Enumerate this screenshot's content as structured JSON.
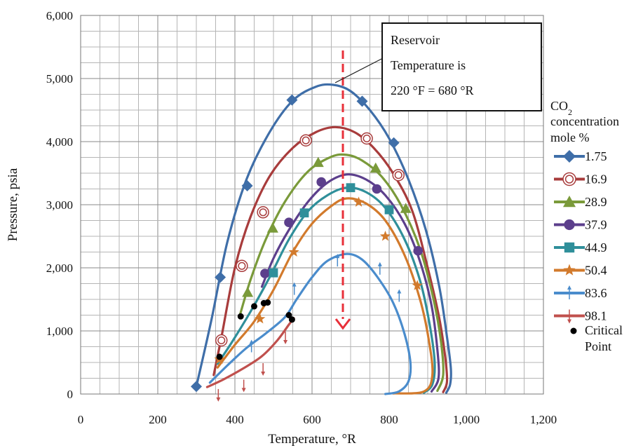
{
  "chart_data": {
    "type": "line",
    "xlabel": "Temperature, °R",
    "ylabel": "Pressure, psia",
    "xlim": [
      0,
      1200
    ],
    "ylim": [
      0,
      6000
    ],
    "x_ticks": [
      "0",
      "200",
      "400",
      "600",
      "800",
      "1,000",
      "1,200"
    ],
    "y_ticks": [
      "0",
      "1,000",
      "2,000",
      "3,000",
      "4,000",
      "5,000",
      "6,000"
    ],
    "grid": true,
    "legend": {
      "title_line1": "CO",
      "title_sub": "2",
      "title_line2": "concentration",
      "title_line3": "mole %",
      "placement": "right"
    },
    "annotation": {
      "lines": [
        "Reservoir",
        "Temperature is",
        "220 °F = 680 °R"
      ],
      "reservoir_temperature": 680
    },
    "series": [
      {
        "name": "1.75",
        "color": "#3f6ea8",
        "marker": "diamond",
        "curve": [
          [
            300,
            120
          ],
          [
            340,
            1200
          ],
          [
            380,
            2400
          ],
          [
            430,
            3400
          ],
          [
            490,
            4150
          ],
          [
            550,
            4650
          ],
          [
            610,
            4870
          ],
          [
            655,
            4900
          ],
          [
            700,
            4800
          ],
          [
            750,
            4500
          ],
          [
            800,
            4050
          ],
          [
            850,
            3400
          ],
          [
            895,
            2600
          ],
          [
            930,
            1700
          ],
          [
            950,
            900
          ],
          [
            960,
            400
          ],
          [
            958,
            150
          ],
          [
            948,
            20
          ]
        ],
        "markers": [
          [
            300,
            120
          ],
          [
            362,
            1850
          ],
          [
            432,
            3300
          ],
          [
            548,
            4660
          ],
          [
            730,
            4640
          ],
          [
            812,
            3980
          ]
        ]
      },
      {
        "name": "16.9",
        "color": "#a83c3c",
        "marker": "circle-open",
        "curve": [
          [
            345,
            300
          ],
          [
            365,
            900
          ],
          [
            400,
            2000
          ],
          [
            440,
            2800
          ],
          [
            490,
            3450
          ],
          [
            550,
            3900
          ],
          [
            610,
            4150
          ],
          [
            660,
            4230
          ],
          [
            710,
            4150
          ],
          [
            760,
            3900
          ],
          [
            810,
            3500
          ],
          [
            860,
            2900
          ],
          [
            900,
            2000
          ],
          [
            930,
            1200
          ],
          [
            945,
            600
          ],
          [
            950,
            200
          ],
          [
            940,
            30
          ]
        ],
        "markers": [
          [
            365,
            850
          ],
          [
            418,
            2030
          ],
          [
            473,
            2880
          ],
          [
            584,
            4020
          ],
          [
            742,
            4050
          ],
          [
            824,
            3470
          ]
        ]
      },
      {
        "name": "28.9",
        "color": "#7a9a3a",
        "marker": "triangle",
        "curve": [
          [
            413,
            1250
          ],
          [
            440,
            1800
          ],
          [
            480,
            2450
          ],
          [
            530,
            3050
          ],
          [
            590,
            3530
          ],
          [
            650,
            3760
          ],
          [
            690,
            3790
          ],
          [
            730,
            3700
          ],
          [
            780,
            3450
          ],
          [
            830,
            3000
          ],
          [
            880,
            2300
          ],
          [
            915,
            1500
          ],
          [
            935,
            800
          ],
          [
            940,
            300
          ],
          [
            925,
            50
          ]
        ],
        "markers": [
          [
            433,
            1610
          ],
          [
            498,
            2630
          ],
          [
            616,
            3670
          ],
          [
            765,
            3580
          ],
          [
            843,
            2940
          ]
        ]
      },
      {
        "name": "37.9",
        "color": "#5c3f8c",
        "marker": "circle",
        "curve": [
          [
            470,
            1700
          ],
          [
            500,
            2150
          ],
          [
            540,
            2600
          ],
          [
            590,
            3050
          ],
          [
            640,
            3350
          ],
          [
            690,
            3480
          ],
          [
            740,
            3400
          ],
          [
            790,
            3150
          ],
          [
            840,
            2700
          ],
          [
            880,
            2100
          ],
          [
            910,
            1400
          ],
          [
            925,
            700
          ],
          [
            928,
            250
          ],
          [
            910,
            40
          ]
        ],
        "markers": [
          [
            478,
            1910
          ],
          [
            540,
            2720
          ],
          [
            624,
            3360
          ],
          [
            768,
            3250
          ],
          [
            875,
            2270
          ]
        ]
      },
      {
        "name": "44.9",
        "color": "#2f8f9a",
        "marker": "square",
        "curve": [
          [
            355,
            480
          ],
          [
            390,
            800
          ],
          [
            440,
            1300
          ],
          [
            490,
            1850
          ],
          [
            540,
            2450
          ],
          [
            590,
            2900
          ],
          [
            640,
            3150
          ],
          [
            690,
            3270
          ],
          [
            740,
            3200
          ],
          [
            790,
            2950
          ],
          [
            840,
            2450
          ],
          [
            880,
            1800
          ],
          [
            905,
            1100
          ],
          [
            918,
            500
          ],
          [
            912,
            150
          ],
          [
            890,
            20
          ]
        ],
        "markers": [
          [
            500,
            1920
          ],
          [
            580,
            2870
          ],
          [
            700,
            3270
          ],
          [
            800,
            2920
          ]
        ]
      },
      {
        "name": "50.4",
        "color": "#d27a2c",
        "marker": "star",
        "curve": [
          [
            355,
            420
          ],
          [
            400,
            780
          ],
          [
            450,
            1150
          ],
          [
            500,
            1650
          ],
          [
            550,
            2250
          ],
          [
            600,
            2700
          ],
          [
            650,
            2980
          ],
          [
            690,
            3100
          ],
          [
            740,
            3020
          ],
          [
            790,
            2750
          ],
          [
            840,
            2200
          ],
          [
            880,
            1500
          ],
          [
            903,
            850
          ],
          [
            912,
            300
          ],
          [
            890,
            40
          ],
          [
            810,
            10
          ]
        ],
        "markers": [
          [
            360,
            550
          ],
          [
            465,
            1190
          ],
          [
            553,
            2250
          ],
          [
            721,
            3040
          ],
          [
            790,
            2500
          ],
          [
            873,
            1720
          ]
        ]
      },
      {
        "name": "83.6",
        "color": "#4a8ccc",
        "marker": "arrow-up",
        "curve": [
          [
            335,
            180
          ],
          [
            380,
            450
          ],
          [
            430,
            730
          ],
          [
            480,
            960
          ],
          [
            530,
            1220
          ],
          [
            560,
            1500
          ],
          [
            600,
            1850
          ],
          [
            640,
            2110
          ],
          [
            690,
            2220
          ],
          [
            730,
            2130
          ],
          [
            770,
            1850
          ],
          [
            810,
            1450
          ],
          [
            840,
            950
          ],
          [
            855,
            500
          ],
          [
            850,
            200
          ],
          [
            825,
            40
          ],
          [
            790,
            0
          ]
        ],
        "markers": [
          [
            443,
            750
          ],
          [
            554,
            1660
          ],
          [
            666,
            2110
          ],
          [
            776,
            1980
          ],
          [
            826,
            1550
          ]
        ]
      },
      {
        "name": "98.1",
        "color": "#c0504d",
        "marker": "arrow-down",
        "curve": [
          [
            328,
            110
          ],
          [
            370,
            230
          ],
          [
            420,
            400
          ],
          [
            470,
            600
          ],
          [
            510,
            850
          ],
          [
            540,
            1100
          ],
          [
            553,
            1200
          ]
        ],
        "markers": [
          [
            357,
            -10
          ],
          [
            423,
            140
          ],
          [
            473,
            400
          ],
          [
            531,
            900
          ]
        ]
      }
    ],
    "critical_points": {
      "name": "Critical Point",
      "color": "#000000",
      "points": [
        [
          360,
          590
        ],
        [
          415,
          1230
        ],
        [
          450,
          1390
        ],
        [
          475,
          1440
        ],
        [
          485,
          1450
        ],
        [
          540,
          1250
        ],
        [
          548,
          1180
        ]
      ]
    }
  }
}
